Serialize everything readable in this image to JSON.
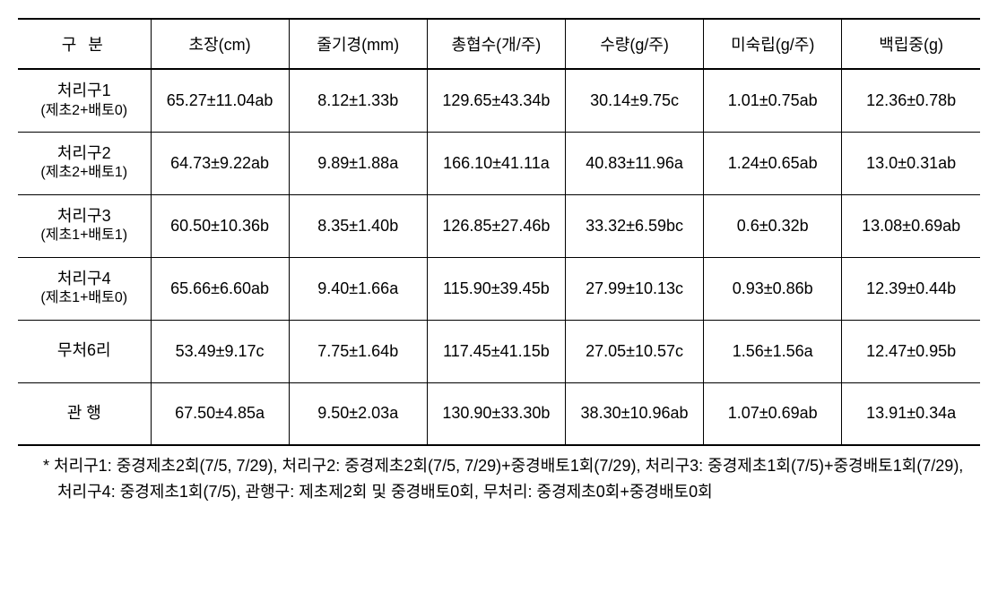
{
  "headers": {
    "col0": "구 분",
    "col1": "초장(cm)",
    "col2": "줄기경(mm)",
    "col3": "총협수(개/주)",
    "col4": "수량(g/주)",
    "col5": "미숙립(g/주)",
    "col6": "백립중(g)"
  },
  "rows": [
    {
      "label_main": "처리구1",
      "label_sub": "(제초2+배토0)",
      "c1": "65.27±11.04ab",
      "c2": "8.12±1.33b",
      "c3": "129.65±43.34b",
      "c4": "30.14±9.75c",
      "c5": "1.01±0.75ab",
      "c6": "12.36±0.78b"
    },
    {
      "label_main": "처리구2",
      "label_sub": "(제초2+배토1)",
      "c1": "64.73±9.22ab",
      "c2": "9.89±1.88a",
      "c3": "166.10±41.11a",
      "c4": "40.83±11.96a",
      "c5": "1.24±0.65ab",
      "c6": "13.0±0.31ab"
    },
    {
      "label_main": "처리구3",
      "label_sub": "(제초1+배토1)",
      "c1": "60.50±10.36b",
      "c2": "8.35±1.40b",
      "c3": "126.85±27.46b",
      "c4": "33.32±6.59bc",
      "c5": "0.6±0.32b",
      "c6": "13.08±0.69ab"
    },
    {
      "label_main": "처리구4",
      "label_sub": "(제초1+배토0)",
      "c1": "65.66±6.60ab",
      "c2": "9.40±1.66a",
      "c3": "115.90±39.45b",
      "c4": "27.99±10.13c",
      "c5": "0.93±0.86b",
      "c6": "12.39±0.44b"
    },
    {
      "label_main": "무처6리",
      "label_sub": "",
      "c1": "53.49±9.17c",
      "c2": "7.75±1.64b",
      "c3": "117.45±41.15b",
      "c4": "27.05±10.57c",
      "c5": "1.56±1.56a",
      "c6": "12.47±0.95b"
    },
    {
      "label_main": "관 행",
      "label_sub": "",
      "c1": "67.50±4.85a",
      "c2": "9.50±2.03a",
      "c3": "130.90±33.30b",
      "c4": "38.30±10.96ab",
      "c5": "1.07±0.69ab",
      "c6": "13.91±0.34a"
    }
  ],
  "footnote": "* 처리구1: 중경제초2회(7/5, 7/29), 처리구2: 중경제초2회(7/5, 7/29)+중경배토1회(7/29), 처리구3: 중경제초1회(7/5)+중경배토1회(7/29), 처리구4: 중경제초1회(7/5), 관행구: 제초제2회 및 중경배토0회, 무처리: 중경제초0회+중경배토0회"
}
